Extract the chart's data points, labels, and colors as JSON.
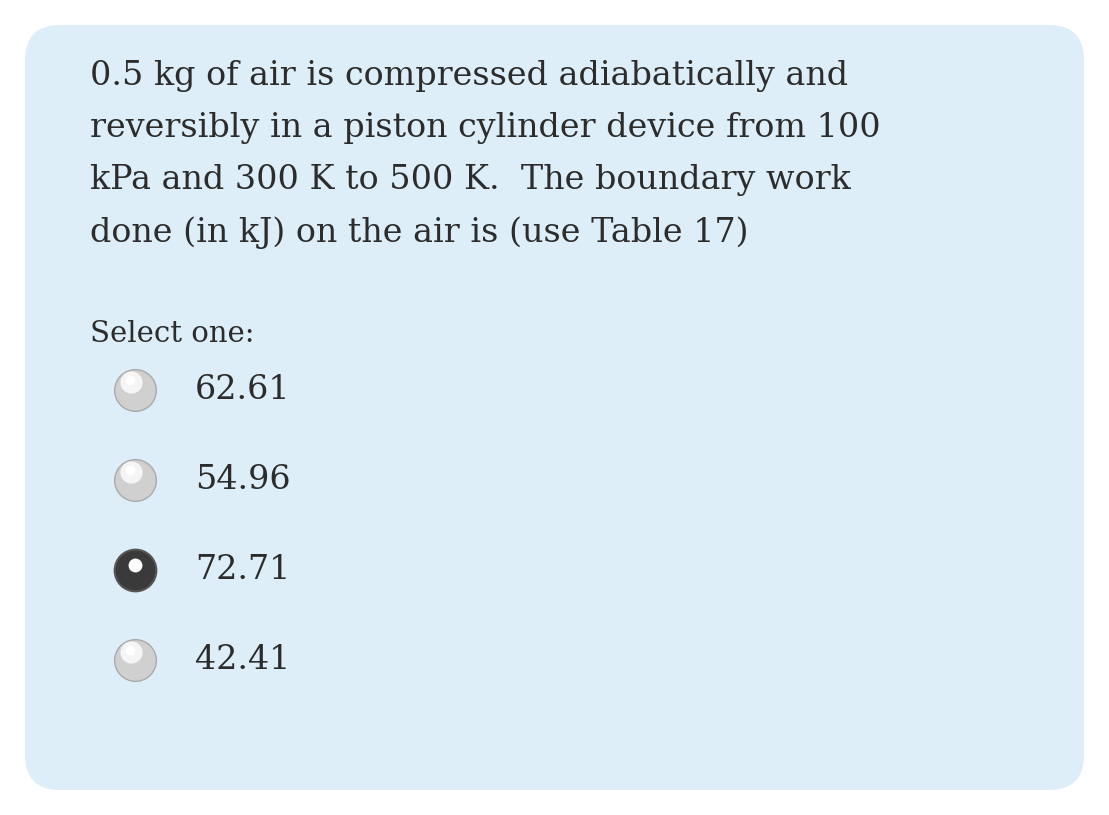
{
  "background_color": "#ffffff",
  "card_color": "#ddeef8",
  "question_text_lines": [
    "0.5 kg of air is compressed adiabatically and",
    "reversibly in a piston cylinder device from 100",
    "kPa and 300 K to 500 K.  The boundary work",
    "done (in kJ) on the air is (use Table 17)"
  ],
  "select_label": "Select one:",
  "options": [
    "62.61",
    "54.96",
    "72.71",
    "42.41"
  ],
  "selected_index": 2,
  "text_color": "#2c2c2c",
  "question_fontsize": 24,
  "select_fontsize": 21,
  "option_fontsize": 24,
  "fig_width": 11.09,
  "fig_height": 8.15
}
